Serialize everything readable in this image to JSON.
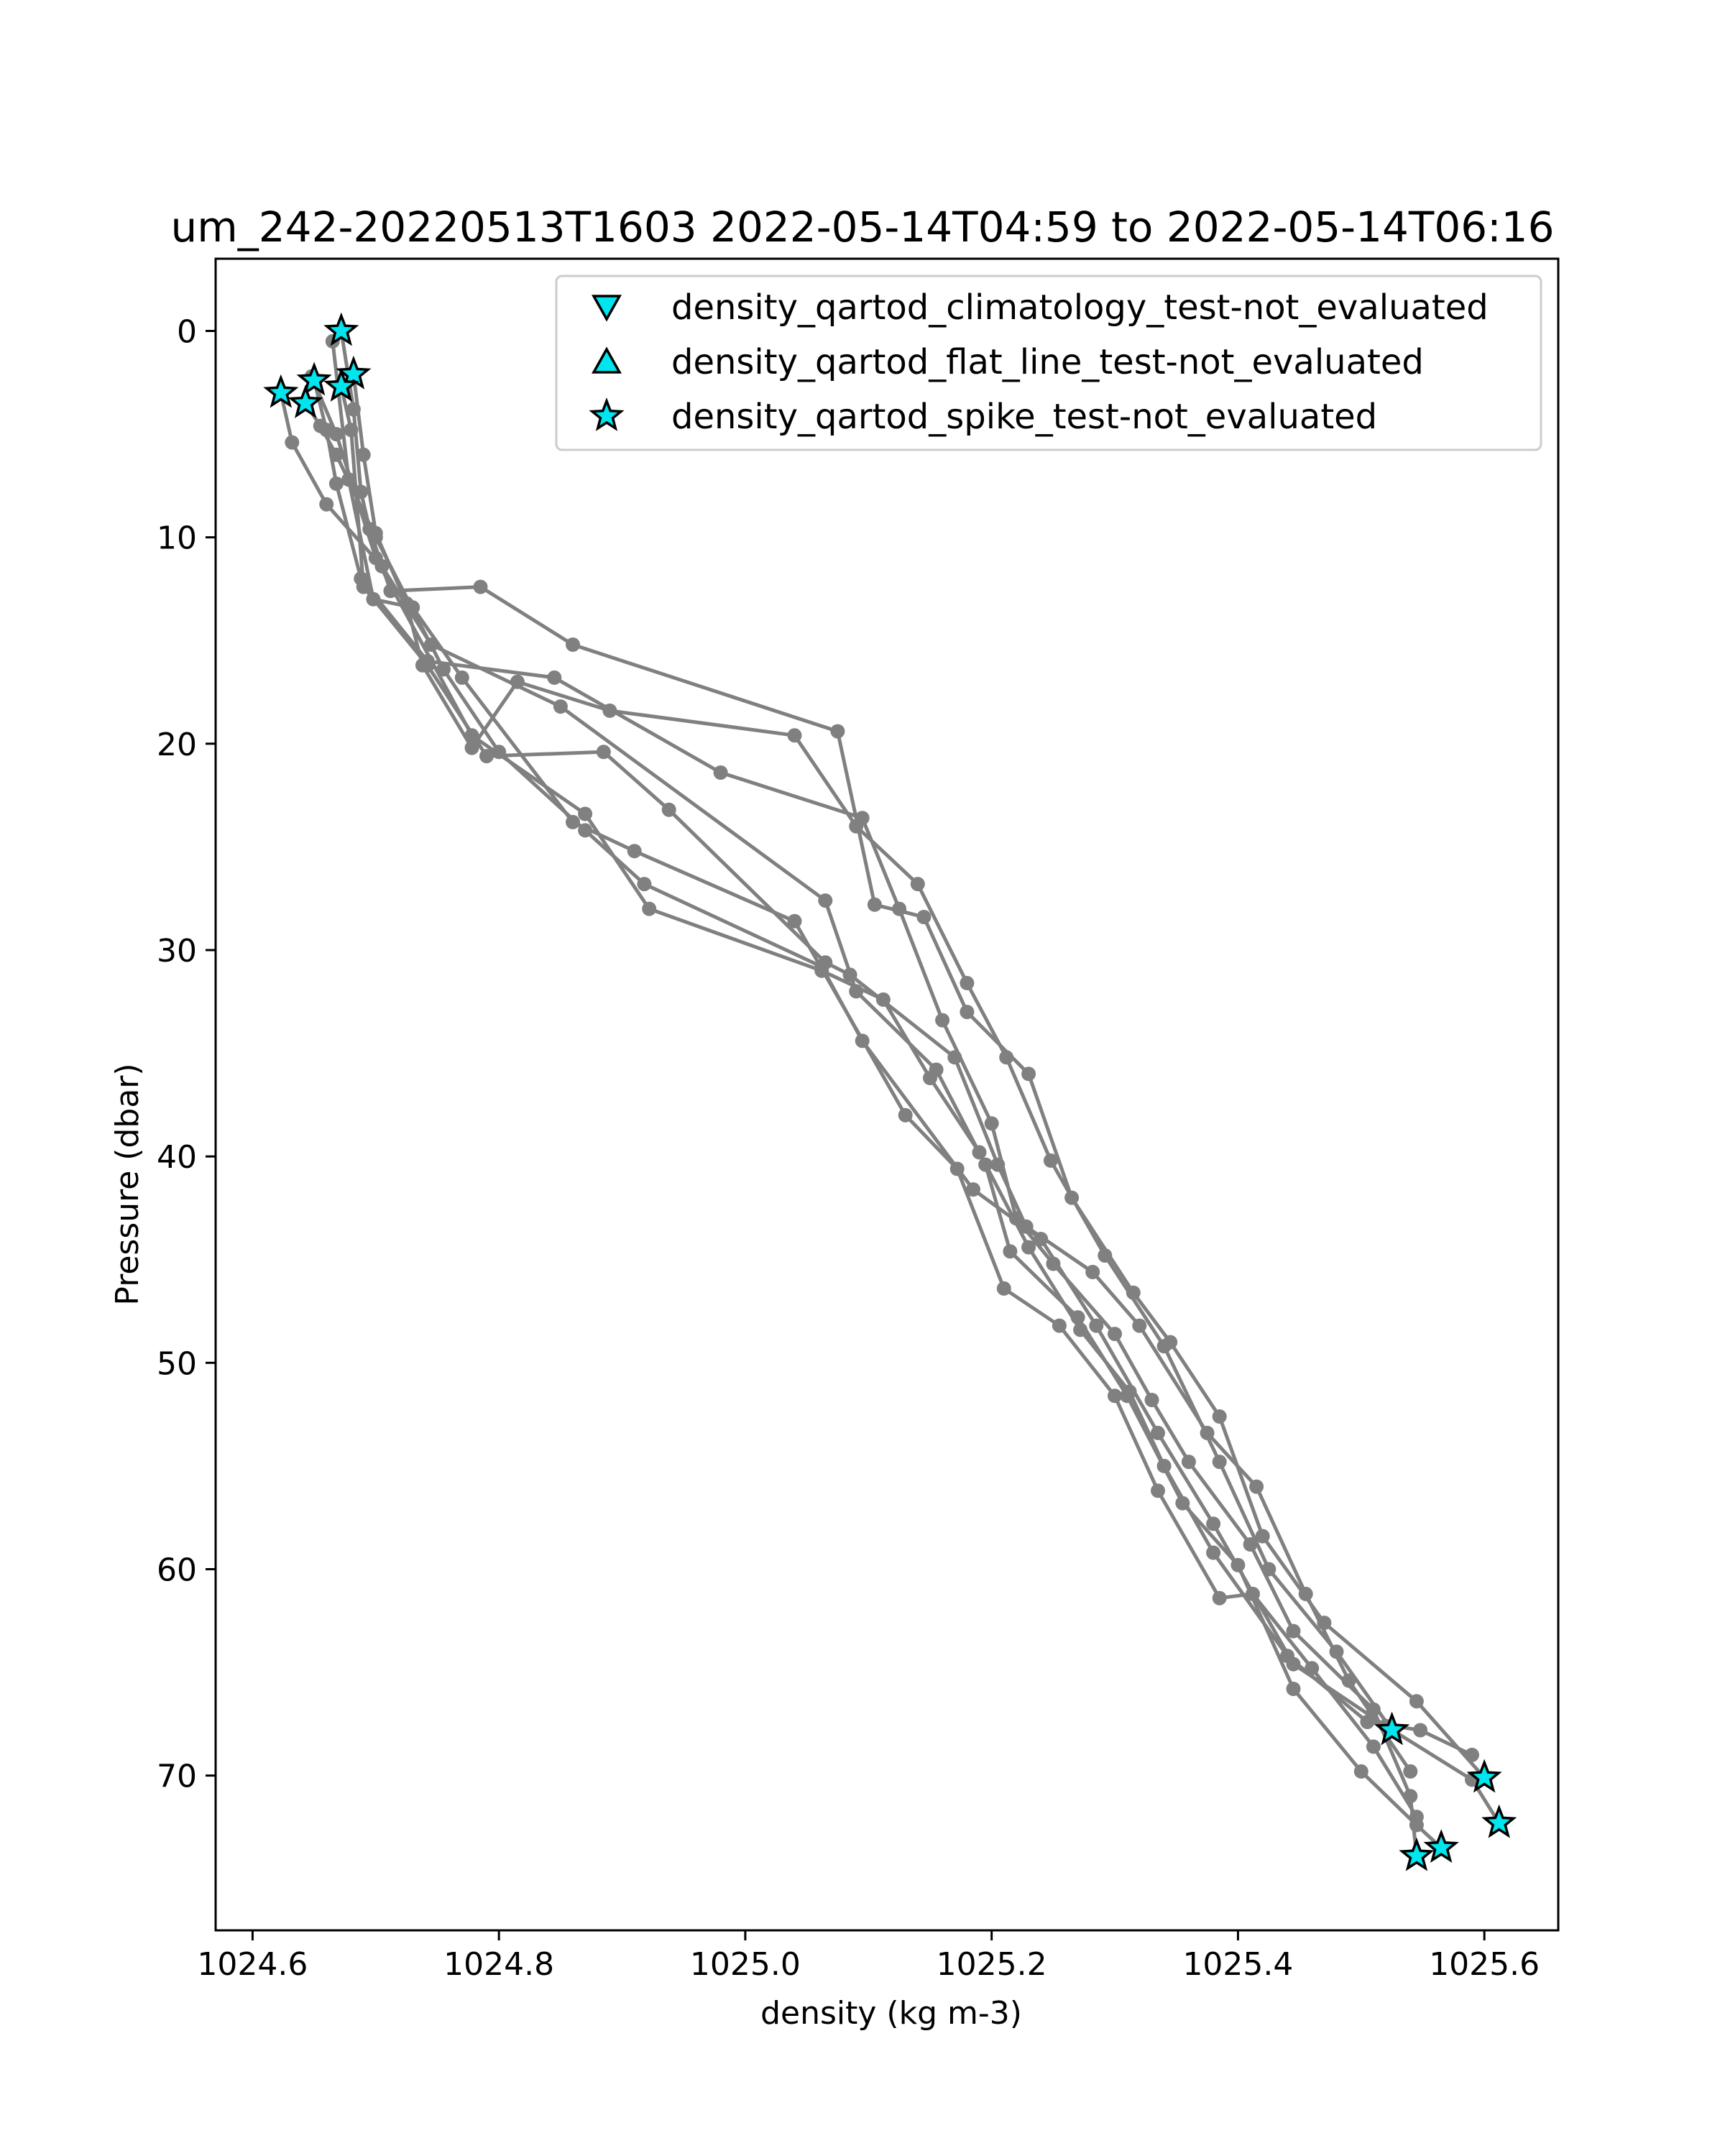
{
  "chart_data": {
    "type": "line",
    "title": "um_242-20220513T1603 2022-05-14T04:59 to 2022-05-14T06:16",
    "xlabel": "density (kg m-3)",
    "ylabel": "Pressure (dbar)",
    "xlim": [
      1024.57,
      1025.66
    ],
    "ylim": [
      77.5,
      -3.5
    ],
    "y_inverted": true,
    "x_ticks": [
      1024.6,
      1024.8,
      1025.0,
      1025.2,
      1025.4,
      1025.6
    ],
    "x_tick_labels": [
      "1024.6",
      "1024.8",
      "1025.0",
      "1025.2",
      "1025.4",
      "1025.6"
    ],
    "y_ticks": [
      0,
      10,
      20,
      30,
      40,
      50,
      60,
      70
    ],
    "y_tick_labels": [
      "0",
      "10",
      "20",
      "30",
      "40",
      "50",
      "60",
      "70"
    ],
    "grid": false,
    "legend_position": "top-right",
    "line_color": "#808080",
    "marker_color": "#00e5ee",
    "series": [
      {
        "x": [
          1024.672,
          1024.682,
          1024.688,
          1024.695,
          1024.712,
          1024.785,
          1024.86,
          1025.075,
          1025.105,
          1025.145,
          1025.18,
          1025.23,
          1025.265,
          1025.315,
          1025.345,
          1025.385,
          1025.42,
          1025.47,
          1025.545,
          1025.6
        ],
        "y": [
          0.0,
          3.8,
          7.8,
          9.6,
          12.6,
          12.4,
          15.2,
          19.4,
          27.8,
          28.4,
          33.0,
          36.0,
          42.0,
          46.6,
          49.0,
          52.6,
          58.4,
          62.6,
          66.4,
          70.1
        ]
      },
      {
        "x": [
          1024.65,
          1024.66,
          1024.668,
          1024.688,
          1024.742,
          1024.845,
          1024.98,
          1025.095,
          1025.125,
          1025.16,
          1025.2,
          1025.22,
          1025.25,
          1025.3,
          1025.33,
          1025.36,
          1025.41,
          1025.445,
          1025.51,
          1025.54,
          1025.545
        ],
        "y": [
          2.4,
          4.8,
          7.4,
          12.0,
          16.0,
          16.8,
          21.4,
          23.6,
          28.0,
          33.4,
          38.4,
          43.0,
          45.2,
          48.6,
          51.8,
          54.8,
          58.8,
          63.0,
          66.8,
          71.0,
          73.9
        ]
      },
      {
        "x": [
          1024.623,
          1024.632,
          1024.66,
          1024.705,
          1024.745,
          1024.85,
          1025.065,
          1025.09,
          1025.155,
          1025.195,
          1025.215,
          1025.27,
          1025.31,
          1025.355,
          1025.4,
          1025.445,
          1025.5,
          1025.545,
          1025.565
        ],
        "y": [
          3.0,
          5.4,
          8.4,
          11.4,
          15.2,
          18.2,
          27.6,
          32.0,
          35.8,
          40.4,
          44.6,
          47.8,
          51.6,
          56.8,
          59.8,
          65.8,
          69.8,
          72.4,
          73.5
        ]
      },
      {
        "x": [
          1024.643,
          1024.655,
          1024.668,
          1024.7,
          1024.755,
          1024.8,
          1024.87,
          1024.918,
          1025.062,
          1025.095,
          1025.185,
          1025.24,
          1025.285,
          1025.335,
          1025.38,
          1025.445,
          1025.52,
          1025.59,
          1025.612
        ],
        "y": [
          3.5,
          4.6,
          6.0,
          10.0,
          16.4,
          20.4,
          24.2,
          26.8,
          30.8,
          34.4,
          41.6,
          44.0,
          48.2,
          53.4,
          57.8,
          64.6,
          67.6,
          70.2,
          72.3
        ]
      },
      {
        "x": [
          1024.648,
          1024.668,
          1024.7,
          1024.778,
          1024.87,
          1024.922,
          1025.062,
          1025.112,
          1025.15,
          1025.19,
          1025.23,
          1025.272,
          1025.312,
          1025.34,
          1025.38,
          1025.44,
          1025.505,
          1025.548,
          1025.59
        ],
        "y": [
          2.2,
          5.0,
          11.0,
          19.6,
          23.4,
          28.0,
          31.0,
          32.4,
          36.2,
          39.8,
          44.4,
          48.4,
          51.4,
          55.0,
          59.2,
          64.2,
          67.4,
          67.8,
          69.0
        ]
      },
      {
        "x": [
          1024.682,
          1024.69,
          1024.7,
          1024.725,
          1024.738,
          1024.778,
          1024.815,
          1024.89,
          1025.04,
          1025.09,
          1025.14,
          1025.18,
          1025.212,
          1025.248,
          1025.292,
          1025.34,
          1025.385,
          1025.425,
          1025.48,
          1025.525
        ],
        "y": [
          2.1,
          6.0,
          9.8,
          13.2,
          16.2,
          20.2,
          17.0,
          18.4,
          19.6,
          24.0,
          26.8,
          31.6,
          35.2,
          40.2,
          44.8,
          49.2,
          54.8,
          60.0,
          64.0,
          67.8
        ]
      },
      {
        "x": [
          1024.672,
          1024.68,
          1024.69,
          1024.742,
          1024.79,
          1024.885,
          1024.938,
          1025.065,
          1025.085,
          1025.17,
          1025.205,
          1025.228,
          1025.282,
          1025.32,
          1025.375,
          1025.415,
          1025.455,
          1025.49,
          1025.54
        ],
        "y": [
          2.7,
          4.8,
          12.4,
          16.2,
          20.6,
          20.4,
          23.2,
          30.6,
          31.2,
          35.2,
          40.4,
          43.4,
          45.6,
          48.2,
          53.4,
          56.0,
          61.2,
          65.4,
          69.8
        ]
      },
      {
        "x": [
          1024.665,
          1024.678,
          1024.698,
          1024.73,
          1024.77,
          1024.86,
          1024.91,
          1025.04,
          1025.13,
          1025.172,
          1025.21,
          1025.255,
          1025.3,
          1025.335,
          1025.385,
          1025.412,
          1025.46,
          1025.51,
          1025.545
        ],
        "y": [
          0.5,
          7.2,
          13.0,
          13.4,
          16.8,
          23.8,
          25.2,
          28.6,
          38.0,
          40.6,
          46.4,
          48.2,
          51.6,
          56.2,
          61.4,
          61.2,
          64.8,
          68.6,
          72.0
        ]
      }
    ],
    "flag_markers": {
      "label": "density_qartod_spike_test-not_evaluated",
      "x": [
        1024.672,
        1024.682,
        1024.65,
        1024.623,
        1024.643,
        1024.672,
        1025.525,
        1025.6,
        1025.612,
        1025.565,
        1025.545
      ],
      "y": [
        0.0,
        2.1,
        2.4,
        3.0,
        3.5,
        2.7,
        67.8,
        70.1,
        72.3,
        73.5,
        73.9
      ]
    },
    "legend": [
      {
        "label": "density_qartod_climatology_test-not_evaluated",
        "marker": "triangle-down"
      },
      {
        "label": "density_qartod_flat_line_test-not_evaluated",
        "marker": "triangle-up"
      },
      {
        "label": "density_qartod_spike_test-not_evaluated",
        "marker": "star"
      }
    ]
  }
}
